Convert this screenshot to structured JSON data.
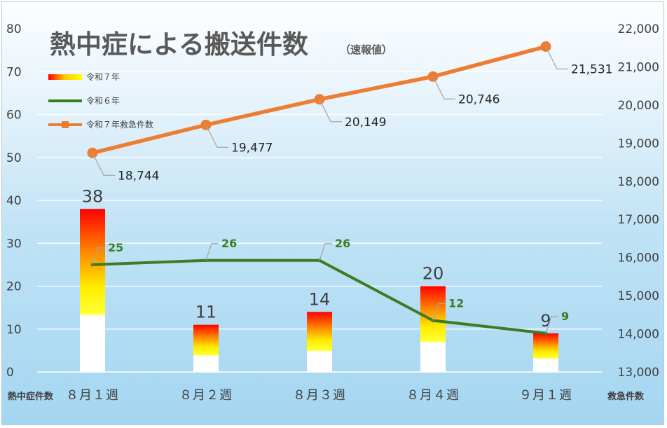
{
  "title": "熱中症による搬送件数",
  "subtitle": "（速報値）",
  "axis": {
    "left_name": "熱中症件数",
    "right_name": "救急件数",
    "left_ticks": [
      "0",
      "10",
      "20",
      "30",
      "40",
      "50",
      "60",
      "70",
      "80"
    ],
    "right_ticks": [
      "13,000",
      "14,000",
      "15,000",
      "16,000",
      "17,000",
      "18,000",
      "19,000",
      "20,000",
      "21,000",
      "22,000"
    ]
  },
  "legend": [
    {
      "label": "令和７年",
      "style": "gradient-bar"
    },
    {
      "label": "令和６年",
      "style": "line"
    },
    {
      "label": "令和７年救急件数",
      "style": "line-marker"
    }
  ],
  "chart_data": {
    "type": "bar",
    "title": "熱中症による搬送件数",
    "subtitle": "（速報値）",
    "categories": [
      "８月１週",
      "８月２週",
      "８月３週",
      "８月４週",
      "９月１週"
    ],
    "ylim": [
      0,
      80
    ],
    "y2lim": [
      13000,
      22000
    ],
    "grid": true,
    "legend_position": "top-left",
    "series": [
      {
        "name": "令和７年",
        "type": "bar",
        "axis": "left",
        "values": [
          38,
          11,
          14,
          20,
          9
        ],
        "labels": [
          "38",
          "11",
          "14",
          "20",
          "9"
        ],
        "color": "#ffff00"
      },
      {
        "name": "令和６年",
        "type": "line",
        "axis": "left",
        "values": [
          25,
          26,
          26,
          12,
          9
        ],
        "labels": [
          "25",
          "26",
          "26",
          "12",
          "9"
        ],
        "color": "#3a7d22"
      },
      {
        "name": "令和７年救急件数",
        "type": "line",
        "axis": "right",
        "values": [
          18744,
          19477,
          20149,
          20746,
          21531
        ],
        "labels": [
          "18,744",
          "19,477",
          "20,149",
          "20,746",
          "21,531"
        ],
        "color": "#ed7d31"
      }
    ]
  }
}
